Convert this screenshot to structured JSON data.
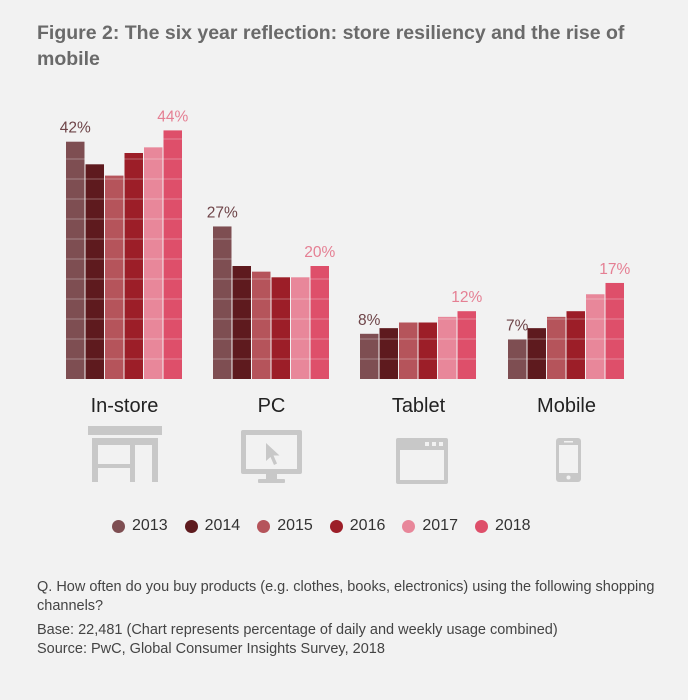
{
  "title": "Figure 2: The six year reflection: store resiliency and the rise of mobile",
  "colors": {
    "2013": "#7e4e52",
    "2014": "#5e1a1e",
    "2015": "#b5545b",
    "2016": "#9c1e28",
    "2017": "#e8879a",
    "2018": "#de4f6a",
    "icon": "#c8c8c8",
    "label_first": "#6e4448",
    "label_last": "#e57f93"
  },
  "legend": [
    {
      "label": "2013",
      "color": "#7e4e52"
    },
    {
      "label": "2014",
      "color": "#5e1a1e"
    },
    {
      "label": "2015",
      "color": "#b5545b"
    },
    {
      "label": "2016",
      "color": "#9c1e28"
    },
    {
      "label": "2017",
      "color": "#e8879a"
    },
    {
      "label": "2018",
      "color": "#de4f6a"
    }
  ],
  "icons": [
    "store-icon",
    "monitor-icon",
    "browser-window-icon",
    "smartphone-icon"
  ],
  "chart_data": {
    "type": "bar",
    "title": "Figure 2: The six year reflection: store resiliency and the rise of mobile",
    "categories": [
      "In-store",
      "PC",
      "Tablet",
      "Mobile"
    ],
    "series": [
      {
        "name": "2013",
        "values": [
          42,
          27,
          8,
          7
        ]
      },
      {
        "name": "2014",
        "values": [
          38,
          20,
          9,
          9
        ]
      },
      {
        "name": "2015",
        "values": [
          36,
          19,
          10,
          11
        ]
      },
      {
        "name": "2016",
        "values": [
          40,
          18,
          10,
          12
        ]
      },
      {
        "name": "2017",
        "values": [
          41,
          18,
          11,
          15
        ]
      },
      {
        "name": "2018",
        "values": [
          44,
          20,
          12,
          17
        ]
      }
    ],
    "data_labels": [
      {
        "category": "In-store",
        "first": "42%",
        "last": "44%"
      },
      {
        "category": "PC",
        "first": "27%",
        "last": "20%"
      },
      {
        "category": "Tablet",
        "first": "8%",
        "last": "12%"
      },
      {
        "category": "Mobile",
        "first": "7%",
        "last": "17%"
      }
    ],
    "ylim": [
      0,
      45
    ],
    "legend_position": "bottom",
    "grid": false
  },
  "footer": {
    "question": "Q. How often do you buy products (e.g. clothes, books, electronics) using the following shopping channels?",
    "base": "Base: 22,481 (Chart represents percentage of daily and weekly usage combined)",
    "source": "Source: PwC, Global Consumer Insights Survey, 2018"
  }
}
